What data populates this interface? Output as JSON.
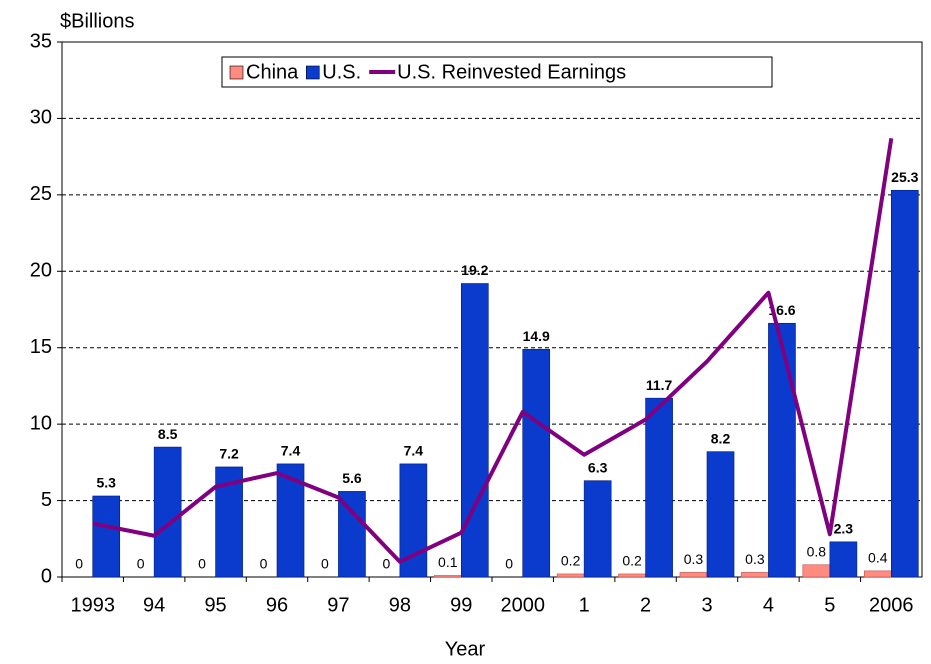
{
  "chart_data": {
    "type": "bar-line",
    "y_axis_title": "$Billions",
    "x_axis_title": "Year",
    "categories": [
      "1993",
      "94",
      "95",
      "96",
      "97",
      "98",
      "99",
      "2000",
      "1",
      "2",
      "3",
      "4",
      "5",
      "2006"
    ],
    "series": [
      {
        "name": "China",
        "type": "bar",
        "color": "#ff8a80",
        "values": [
          0,
          0,
          0,
          0,
          0,
          0,
          0.1,
          0,
          0.2,
          0.2,
          0.3,
          0.3,
          0.8,
          0.4
        ]
      },
      {
        "name": "U.S.",
        "type": "bar",
        "color": "#0a3bcc",
        "values": [
          5.3,
          8.5,
          7.2,
          7.4,
          5.6,
          7.4,
          19.2,
          14.9,
          6.3,
          11.7,
          8.2,
          16.6,
          2.3,
          25.3
        ]
      },
      {
        "name": "U.S. Reinvested Earnings",
        "type": "line",
        "color": "#800080",
        "values": [
          3.5,
          2.7,
          5.9,
          6.8,
          5.2,
          1.0,
          2.9,
          10.8,
          8.0,
          10.3,
          14.1,
          18.6,
          2.8,
          28.7
        ]
      }
    ],
    "ylim": [
      0,
      35
    ],
    "yticks": [
      0,
      5,
      10,
      15,
      20,
      25,
      30,
      35
    ],
    "grid": true,
    "legend": "top"
  }
}
